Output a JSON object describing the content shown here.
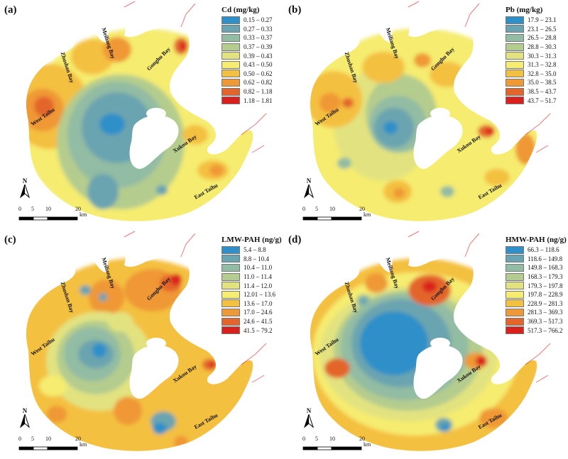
{
  "place_names": {
    "zhushan_bay": "Zhushan Bay",
    "meiliang_bay": "Meiliang Bay",
    "gonghu_bay": "Gonghu Bay",
    "west_taihu": "West Taihu",
    "xukou_bay": "Xukou Bay",
    "east_taihu": "East Taihu"
  },
  "north_label": "N",
  "scale_bar": {
    "ticks": [
      "0",
      "5",
      "10",
      "20"
    ],
    "unit": "km"
  },
  "panels": [
    {
      "id": "a",
      "label": "(a)",
      "legend_title": "Cd (mg/kg)",
      "classes": [
        "0.15 – 0.27",
        "0.27 – 0.33",
        "0.33 – 0.37",
        "0.37 – 0.39",
        "0.39 – 0.43",
        "0.43 – 0.50",
        "0.50 – 0.62",
        "0.62 – 0.82",
        "0.82 – 1.18",
        "1.18 – 1.81"
      ],
      "colors": [
        "#2e8fc9",
        "#6aa4b0",
        "#92bca3",
        "#b4cc8e",
        "#e2e380",
        "#f5ec70",
        "#f4c040",
        "#ef9836",
        "#e3652c",
        "#d9201d"
      ]
    },
    {
      "id": "b",
      "label": "(b)",
      "legend_title": "Pb (mg/kg)",
      "classes": [
        "17.9 – 23.1",
        "23.1 – 26.5",
        "26.5 – 28.8",
        "28.8 – 30.3",
        "30.3 – 31.3",
        "31.3 – 32.8",
        "32.8 – 35.0",
        "35.0 – 38.5",
        "38.5 – 43.7",
        "43.7 – 51.7"
      ],
      "colors": [
        "#2e8fc9",
        "#6aa4b0",
        "#92bca3",
        "#b4cc8e",
        "#e2e380",
        "#f5ec70",
        "#f4c040",
        "#ef9836",
        "#e3652c",
        "#d9201d"
      ]
    },
    {
      "id": "c",
      "label": "(c)",
      "legend_title": "LMW-PAH (ng/g)",
      "classes": [
        "5.4 – 8.8",
        "8.8 – 10.4",
        "10.4 – 11.0",
        "11.0 – 11.4",
        "11.4 – 12.0",
        "12.01 – 13.6",
        "13.6 – 17.0",
        "17.0 – 24.6",
        "24.6 – 41.5",
        "41.5 – 79.2"
      ],
      "colors": [
        "#2e8fc9",
        "#6aa4b0",
        "#92bca3",
        "#b4cc8e",
        "#e2e380",
        "#f5ec70",
        "#f4c040",
        "#ef9836",
        "#e3652c",
        "#d9201d"
      ]
    },
    {
      "id": "d",
      "label": "(d)",
      "legend_title": "HMW-PAH (ng/g)",
      "classes": [
        "66.3 – 118.6",
        "118.6 – 149.8",
        "149.8 – 168.3",
        "168.3 – 179.3",
        "179.3 – 197.8",
        "197.8 – 228.9",
        "228.9 – 281.3",
        "281.3 – 369.3",
        "369.3 – 517.3",
        "517.3 – 766.2"
      ],
      "colors": [
        "#2e8fc9",
        "#6aa4b0",
        "#92bca3",
        "#b4cc8e",
        "#e2e380",
        "#f5ec70",
        "#f4c040",
        "#ef9836",
        "#e3652c",
        "#d9201d"
      ]
    }
  ]
}
